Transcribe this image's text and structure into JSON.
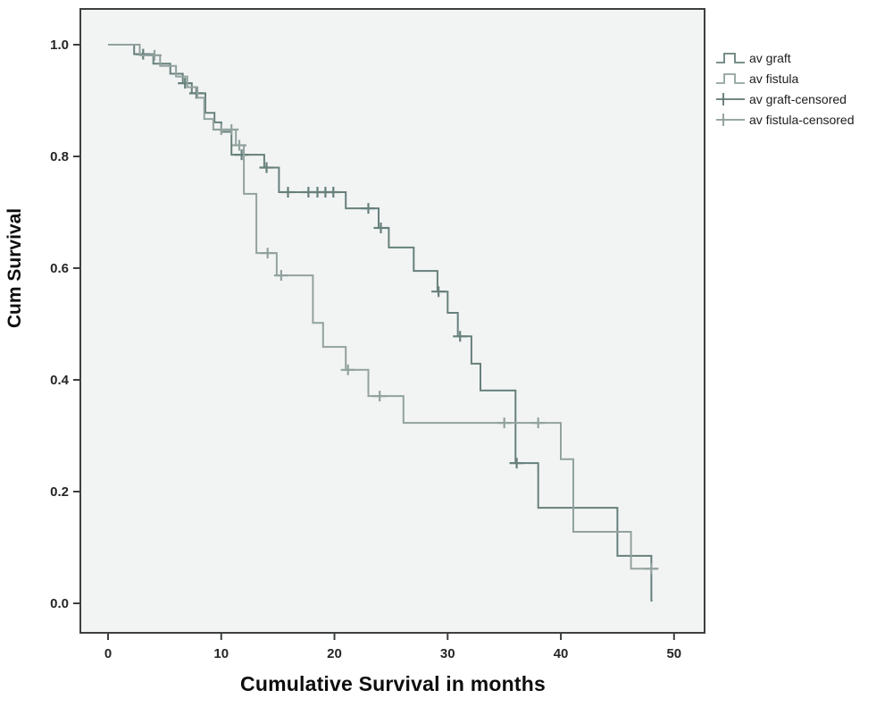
{
  "figure": {
    "x_axis_title": "Cumulative Survival in months",
    "y_axis_title": "Cum Survival"
  },
  "chart_data": {
    "type": "line",
    "subtype": "kaplan-meier-step-survival",
    "title": "",
    "xlabel": "Cumulative Survival in months",
    "ylabel": "Cum Survival",
    "xlim": [
      -2.5,
      52.7
    ],
    "ylim": [
      -0.053,
      1.064
    ],
    "grid": false,
    "legend_position": "outside-upper-right",
    "background_color": "#f2f4f3",
    "frame_color": "#3d403f",
    "xticks": [
      {
        "v": 0,
        "label": "0"
      },
      {
        "v": 10,
        "label": "10"
      },
      {
        "v": 20,
        "label": "20"
      },
      {
        "v": 30,
        "label": "30"
      },
      {
        "v": 40,
        "label": "40"
      },
      {
        "v": 50,
        "label": "50"
      }
    ],
    "yticks": [
      {
        "v": 0.0,
        "label": "0.0"
      },
      {
        "v": 0.2,
        "label": "0.2"
      },
      {
        "v": 0.4,
        "label": "0.4"
      },
      {
        "v": 0.6,
        "label": "0.6"
      },
      {
        "v": 0.8,
        "label": "0.8"
      },
      {
        "v": 1.0,
        "label": "1.0"
      }
    ],
    "series": [
      {
        "name": "av graft",
        "color": "#67807c",
        "start": [
          0,
          1.0
        ],
        "steps": [
          [
            2.3,
            0.983
          ],
          [
            4.0,
            0.966
          ],
          [
            5.5,
            0.948
          ],
          [
            6.6,
            0.931
          ],
          [
            7.4,
            0.913
          ],
          [
            8.6,
            0.878
          ],
          [
            9.4,
            0.861
          ],
          [
            10.0,
            0.844
          ],
          [
            10.9,
            0.803
          ],
          [
            13.8,
            0.78
          ],
          [
            15.1,
            0.736
          ],
          [
            21.0,
            0.707
          ],
          [
            23.9,
            0.672
          ],
          [
            24.8,
            0.637
          ],
          [
            27.0,
            0.595
          ],
          [
            29.1,
            0.558
          ],
          [
            30.0,
            0.52
          ],
          [
            30.9,
            0.478
          ],
          [
            32.1,
            0.429
          ],
          [
            32.9,
            0.381
          ],
          [
            36.0,
            0.251
          ],
          [
            38.0,
            0.171
          ],
          [
            45.0,
            0.085
          ],
          [
            48.0,
            0.005
          ]
        ],
        "end_time": 48.1,
        "censored": [
          [
            3.1,
            0.983
          ],
          [
            6.8,
            0.931
          ],
          [
            7.8,
            0.913
          ],
          [
            11.8,
            0.803
          ],
          [
            14.0,
            0.78
          ],
          [
            15.9,
            0.736
          ],
          [
            17.7,
            0.736
          ],
          [
            18.5,
            0.736
          ],
          [
            19.2,
            0.736
          ],
          [
            19.9,
            0.736
          ],
          [
            23.0,
            0.707
          ],
          [
            24.1,
            0.672
          ],
          [
            29.2,
            0.558
          ],
          [
            31.1,
            0.478
          ],
          [
            36.1,
            0.251
          ]
        ]
      },
      {
        "name": "av fistula",
        "color": "#92a29f",
        "start": [
          0,
          1.0
        ],
        "steps": [
          [
            2.8,
            0.981
          ],
          [
            4.6,
            0.962
          ],
          [
            6.0,
            0.943
          ],
          [
            7.0,
            0.924
          ],
          [
            7.9,
            0.905
          ],
          [
            8.5,
            0.867
          ],
          [
            9.3,
            0.848
          ],
          [
            11.3,
            0.82
          ],
          [
            12.0,
            0.733
          ],
          [
            13.1,
            0.627
          ],
          [
            14.9,
            0.587
          ],
          [
            18.1,
            0.502
          ],
          [
            19.0,
            0.459
          ],
          [
            21.0,
            0.418
          ],
          [
            23.0,
            0.371
          ],
          [
            26.1,
            0.323
          ],
          [
            40.0,
            0.258
          ],
          [
            41.1,
            0.128
          ],
          [
            46.2,
            0.062
          ]
        ],
        "end_time": 48.5,
        "censored": [
          [
            4.1,
            0.981
          ],
          [
            10.0,
            0.848
          ],
          [
            10.9,
            0.848
          ],
          [
            11.6,
            0.82
          ],
          [
            14.1,
            0.627
          ],
          [
            15.3,
            0.587
          ],
          [
            21.2,
            0.418
          ],
          [
            24.0,
            0.371
          ],
          [
            35.0,
            0.323
          ],
          [
            38.0,
            0.323
          ],
          [
            48.0,
            0.062
          ]
        ]
      }
    ],
    "legend": [
      {
        "label": "av graft",
        "symbol": "step-line",
        "color": "#67807c"
      },
      {
        "label": "av fistula",
        "symbol": "step-line",
        "color": "#92a29f"
      },
      {
        "label": "av graft-censored",
        "symbol": "plus",
        "color": "#5e7572"
      },
      {
        "label": "av fistula-censored",
        "symbol": "plus",
        "color": "#8a9b98"
      }
    ]
  }
}
